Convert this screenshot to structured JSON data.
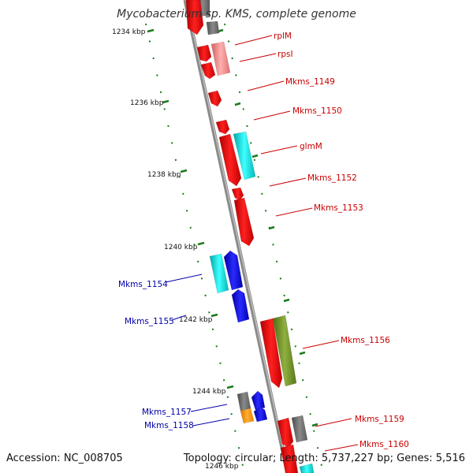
{
  "title": "Mycobacterium sp. KMS, complete genome",
  "footer": {
    "accession": "Accession: NC_008705",
    "summary": "Topology: circular; Length: 5,737,227 bp; Genes: 5,516"
  },
  "axis_labels": [
    "1234 kbp",
    "1236 kbp",
    "1238 kbp",
    "1240 kbp",
    "1242 kbp",
    "1244 kbp",
    "1246 kbp"
  ],
  "gene_labels": [
    "rplM",
    "rpsI",
    "Mkms_1149",
    "Mkms_1150",
    "glmM",
    "Mkms_1152",
    "Mkms_1153",
    "Mkms_1154",
    "Mkms_1155",
    "Mkms_1156",
    "Mkms_1157",
    "Mkms_1158",
    "Mkms_1159",
    "Mkms_1160"
  ],
  "colors": {
    "red": "#ff0000",
    "pink": "#f08080",
    "gray": "#707070",
    "cyan": "#00d0d0",
    "blue": "#0000e6",
    "olive": "#6b8e23",
    "orange": "#ff9900",
    "backbone": "#8a8a8a",
    "tick_green": "#1a7a1a",
    "label_red": "#cc0000",
    "label_blue": "#0000aa"
  }
}
